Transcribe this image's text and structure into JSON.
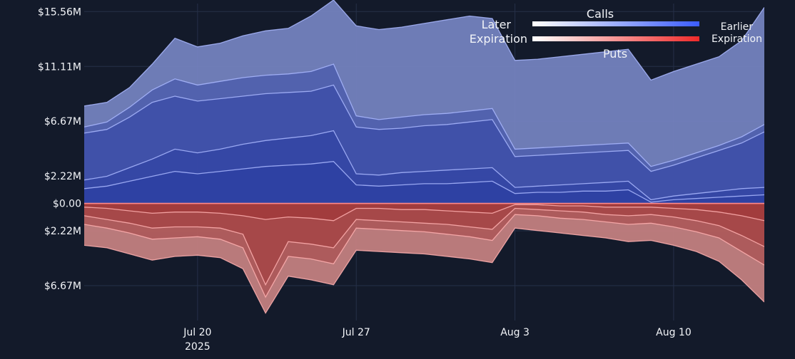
{
  "chart_data": {
    "type": "area",
    "title": "",
    "xlabel": "",
    "ylabel": "",
    "x_range": [
      "2025-07-15",
      "2025-08-14"
    ],
    "y_range": [
      -9.5,
      16.5
    ],
    "y_ticks": [
      {
        "value": 15.56,
        "label": "$15.56M"
      },
      {
        "value": 11.11,
        "label": "$11.11M"
      },
      {
        "value": 6.67,
        "label": "$6.67M"
      },
      {
        "value": 2.22,
        "label": "$2.22M"
      },
      {
        "value": 0,
        "label": "$0.00"
      },
      {
        "value": -2.22,
        "label": "$2.22M"
      },
      {
        "value": -6.67,
        "label": "$6.67M"
      }
    ],
    "x_ticks": [
      {
        "date": "2025-07-20",
        "label": "Jul 20",
        "sub": "2025"
      },
      {
        "date": "2025-07-27",
        "label": "Jul 27",
        "sub": ""
      },
      {
        "date": "2025-08-03",
        "label": "Aug 3",
        "sub": ""
      },
      {
        "date": "2025-08-10",
        "label": "Aug 10",
        "sub": ""
      }
    ],
    "grid": true,
    "legend": {
      "placement": "top-right",
      "calls_label": "Calls",
      "puts_label": "Puts",
      "left_top": "Later",
      "left_bottom": "Expiration",
      "right_top": "Earlier",
      "right_bottom": "Expiration"
    },
    "colors": {
      "background": "#131a2a",
      "grid": "#263048",
      "calls_light": "#7684c2",
      "calls_dark": "#2637a0",
      "puts_light": "#c88282",
      "puts_dark": "#9a2a2a",
      "zero_line": "#ff8a8a",
      "calls_gradient": [
        "#ffffff",
        "#3b5cff"
      ],
      "puts_gradient": [
        "#ffffff",
        "#ef2a2a"
      ]
    },
    "series": [
      {
        "kind": "calls",
        "x": [
          "2025-07-15",
          "2025-07-16",
          "2025-07-17",
          "2025-07-18",
          "2025-07-19",
          "2025-07-20",
          "2025-07-21",
          "2025-07-22",
          "2025-07-23",
          "2025-07-24",
          "2025-07-25",
          "2025-07-26",
          "2025-07-27",
          "2025-07-28",
          "2025-07-29",
          "2025-07-30",
          "2025-07-31",
          "2025-08-01",
          "2025-08-02",
          "2025-08-03",
          "2025-08-04",
          "2025-08-05",
          "2025-08-06",
          "2025-08-07",
          "2025-08-08",
          "2025-08-09",
          "2025-08-10",
          "2025-08-11",
          "2025-08-12",
          "2025-08-13",
          "2025-08-14"
        ],
        "values": [
          7.9,
          8.2,
          9.4,
          11.3,
          13.4,
          12.7,
          13.0,
          13.6,
          14.0,
          14.2,
          15.2,
          16.5,
          14.4,
          14.1,
          14.3,
          14.6,
          14.9,
          15.2,
          15.0,
          11.6,
          11.7,
          11.9,
          12.1,
          12.3,
          12.5,
          10.0,
          10.7,
          11.3,
          11.9,
          13.2,
          15.9
        ]
      },
      {
        "kind": "calls",
        "x": [
          "2025-07-15",
          "2025-07-16",
          "2025-07-17",
          "2025-07-18",
          "2025-07-19",
          "2025-07-20",
          "2025-07-21",
          "2025-07-22",
          "2025-07-23",
          "2025-07-24",
          "2025-07-25",
          "2025-07-26",
          "2025-07-27",
          "2025-07-28",
          "2025-07-29",
          "2025-07-30",
          "2025-07-31",
          "2025-08-01",
          "2025-08-02",
          "2025-08-03",
          "2025-08-04",
          "2025-08-05",
          "2025-08-06",
          "2025-08-07",
          "2025-08-08",
          "2025-08-09",
          "2025-08-10",
          "2025-08-11",
          "2025-08-12",
          "2025-08-13",
          "2025-08-14"
        ],
        "values": [
          6.2,
          6.6,
          7.8,
          9.2,
          10.1,
          9.6,
          9.9,
          10.2,
          10.4,
          10.5,
          10.7,
          11.3,
          7.1,
          6.8,
          7.0,
          7.2,
          7.3,
          7.5,
          7.7,
          4.4,
          4.5,
          4.6,
          4.7,
          4.8,
          4.9,
          3.0,
          3.5,
          4.1,
          4.7,
          5.4,
          6.4
        ]
      },
      {
        "kind": "calls",
        "x": [
          "2025-07-15",
          "2025-07-16",
          "2025-07-17",
          "2025-07-18",
          "2025-07-19",
          "2025-07-20",
          "2025-07-21",
          "2025-07-22",
          "2025-07-23",
          "2025-07-24",
          "2025-07-25",
          "2025-07-26",
          "2025-07-27",
          "2025-07-28",
          "2025-07-29",
          "2025-07-30",
          "2025-07-31",
          "2025-08-01",
          "2025-08-02",
          "2025-08-03",
          "2025-08-04",
          "2025-08-05",
          "2025-08-06",
          "2025-08-07",
          "2025-08-08",
          "2025-08-09",
          "2025-08-10",
          "2025-08-11",
          "2025-08-12",
          "2025-08-13",
          "2025-08-14"
        ],
        "values": [
          5.7,
          6.0,
          7.0,
          8.2,
          8.7,
          8.3,
          8.5,
          8.7,
          8.9,
          9.0,
          9.1,
          9.6,
          6.2,
          6.0,
          6.1,
          6.3,
          6.4,
          6.6,
          6.8,
          3.8,
          3.9,
          4.0,
          4.1,
          4.2,
          4.3,
          2.6,
          3.1,
          3.7,
          4.3,
          4.9,
          5.8
        ]
      },
      {
        "kind": "calls",
        "x": [
          "2025-07-15",
          "2025-07-16",
          "2025-07-17",
          "2025-07-18",
          "2025-07-19",
          "2025-07-20",
          "2025-07-21",
          "2025-07-22",
          "2025-07-23",
          "2025-07-24",
          "2025-07-25",
          "2025-07-26",
          "2025-07-27",
          "2025-07-28",
          "2025-07-29",
          "2025-07-30",
          "2025-07-31",
          "2025-08-01",
          "2025-08-02",
          "2025-08-03",
          "2025-08-04",
          "2025-08-05",
          "2025-08-06",
          "2025-08-07",
          "2025-08-08",
          "2025-08-09",
          "2025-08-10",
          "2025-08-11",
          "2025-08-12",
          "2025-08-13",
          "2025-08-14"
        ],
        "values": [
          1.9,
          2.2,
          2.9,
          3.6,
          4.4,
          4.1,
          4.4,
          4.8,
          5.1,
          5.3,
          5.5,
          5.9,
          2.4,
          2.3,
          2.5,
          2.6,
          2.7,
          2.8,
          2.9,
          1.3,
          1.4,
          1.5,
          1.6,
          1.7,
          1.8,
          0.3,
          0.6,
          0.8,
          1.0,
          1.2,
          1.3
        ]
      },
      {
        "kind": "calls",
        "x": [
          "2025-07-15",
          "2025-07-16",
          "2025-07-17",
          "2025-07-18",
          "2025-07-19",
          "2025-07-20",
          "2025-07-21",
          "2025-07-22",
          "2025-07-23",
          "2025-07-24",
          "2025-07-25",
          "2025-07-26",
          "2025-07-27",
          "2025-07-28",
          "2025-07-29",
          "2025-07-30",
          "2025-07-31",
          "2025-08-01",
          "2025-08-02",
          "2025-08-03",
          "2025-08-04",
          "2025-08-05",
          "2025-08-06",
          "2025-08-07",
          "2025-08-08",
          "2025-08-09",
          "2025-08-10",
          "2025-08-11",
          "2025-08-12",
          "2025-08-13",
          "2025-08-14"
        ],
        "values": [
          1.2,
          1.4,
          1.8,
          2.2,
          2.6,
          2.4,
          2.6,
          2.8,
          3.0,
          3.1,
          3.2,
          3.4,
          1.5,
          1.4,
          1.5,
          1.6,
          1.6,
          1.7,
          1.8,
          0.8,
          0.9,
          0.9,
          1.0,
          1.0,
          1.1,
          0.1,
          0.3,
          0.4,
          0.5,
          0.6,
          0.7
        ]
      },
      {
        "kind": "puts",
        "x": [
          "2025-07-15",
          "2025-07-16",
          "2025-07-17",
          "2025-07-18",
          "2025-07-19",
          "2025-07-20",
          "2025-07-21",
          "2025-07-22",
          "2025-07-23",
          "2025-07-24",
          "2025-07-25",
          "2025-07-26",
          "2025-07-27",
          "2025-07-28",
          "2025-07-29",
          "2025-07-30",
          "2025-07-31",
          "2025-08-01",
          "2025-08-02",
          "2025-08-03",
          "2025-08-04",
          "2025-08-05",
          "2025-08-06",
          "2025-08-07",
          "2025-08-08",
          "2025-08-09",
          "2025-08-10",
          "2025-08-11",
          "2025-08-12",
          "2025-08-13",
          "2025-08-14"
        ],
        "values": [
          -3.4,
          -3.6,
          -4.1,
          -4.6,
          -4.3,
          -4.2,
          -4.4,
          -5.3,
          -8.9,
          -5.9,
          -6.2,
          -6.6,
          -3.8,
          -3.9,
          -4.0,
          -4.1,
          -4.3,
          -4.5,
          -4.8,
          -2.0,
          -2.2,
          -2.4,
          -2.6,
          -2.8,
          -3.1,
          -3.0,
          -3.4,
          -3.9,
          -4.7,
          -6.2,
          -8.0
        ]
      },
      {
        "kind": "puts",
        "x": [
          "2025-07-15",
          "2025-07-16",
          "2025-07-17",
          "2025-07-18",
          "2025-07-19",
          "2025-07-20",
          "2025-07-21",
          "2025-07-22",
          "2025-07-23",
          "2025-07-24",
          "2025-07-25",
          "2025-07-26",
          "2025-07-27",
          "2025-07-28",
          "2025-07-29",
          "2025-07-30",
          "2025-07-31",
          "2025-08-01",
          "2025-08-02",
          "2025-08-03",
          "2025-08-04",
          "2025-08-05",
          "2025-08-06",
          "2025-08-07",
          "2025-08-08",
          "2025-08-09",
          "2025-08-10",
          "2025-08-11",
          "2025-08-12",
          "2025-08-13",
          "2025-08-14"
        ],
        "values": [
          -1.7,
          -2.0,
          -2.4,
          -2.9,
          -2.8,
          -2.7,
          -2.9,
          -3.6,
          -7.6,
          -4.3,
          -4.5,
          -4.9,
          -2.0,
          -2.1,
          -2.2,
          -2.3,
          -2.5,
          -2.7,
          -3.0,
          -0.9,
          -1.0,
          -1.2,
          -1.3,
          -1.5,
          -1.7,
          -1.6,
          -1.9,
          -2.3,
          -2.8,
          -3.9,
          -5.0
        ]
      },
      {
        "kind": "puts",
        "x": [
          "2025-07-15",
          "2025-07-16",
          "2025-07-17",
          "2025-07-18",
          "2025-07-19",
          "2025-07-20",
          "2025-07-21",
          "2025-07-22",
          "2025-07-23",
          "2025-07-24",
          "2025-07-25",
          "2025-07-26",
          "2025-07-27",
          "2025-07-28",
          "2025-07-29",
          "2025-07-30",
          "2025-07-31",
          "2025-08-01",
          "2025-08-02",
          "2025-08-03",
          "2025-08-04",
          "2025-08-05",
          "2025-08-06",
          "2025-08-07",
          "2025-08-08",
          "2025-08-09",
          "2025-08-10",
          "2025-08-11",
          "2025-08-12",
          "2025-08-13",
          "2025-08-14"
        ],
        "values": [
          -1.0,
          -1.3,
          -1.6,
          -2.0,
          -1.9,
          -1.9,
          -2.0,
          -2.5,
          -6.6,
          -3.1,
          -3.3,
          -3.6,
          -1.3,
          -1.4,
          -1.5,
          -1.6,
          -1.7,
          -1.9,
          -2.1,
          -0.4,
          -0.5,
          -0.6,
          -0.7,
          -0.9,
          -1.0,
          -0.9,
          -1.1,
          -1.4,
          -1.8,
          -2.6,
          -3.5
        ]
      },
      {
        "kind": "puts",
        "x": [
          "2025-07-15",
          "2025-07-16",
          "2025-07-17",
          "2025-07-18",
          "2025-07-19",
          "2025-07-20",
          "2025-07-21",
          "2025-07-22",
          "2025-07-23",
          "2025-07-24",
          "2025-07-25",
          "2025-07-26",
          "2025-07-27",
          "2025-07-28",
          "2025-07-29",
          "2025-07-30",
          "2025-07-31",
          "2025-08-01",
          "2025-08-02",
          "2025-08-03",
          "2025-08-04",
          "2025-08-05",
          "2025-08-06",
          "2025-08-07",
          "2025-08-08",
          "2025-08-09",
          "2025-08-10",
          "2025-08-11",
          "2025-08-12",
          "2025-08-13",
          "2025-08-14"
        ],
        "values": [
          -0.3,
          -0.4,
          -0.6,
          -0.8,
          -0.7,
          -0.7,
          -0.8,
          -1.0,
          -1.3,
          -1.1,
          -1.2,
          -1.4,
          -0.4,
          -0.4,
          -0.5,
          -0.5,
          -0.6,
          -0.7,
          -0.8,
          -0.1,
          -0.1,
          -0.2,
          -0.2,
          -0.3,
          -0.3,
          -0.3,
          -0.4,
          -0.5,
          -0.7,
          -1.0,
          -1.4
        ]
      }
    ]
  }
}
